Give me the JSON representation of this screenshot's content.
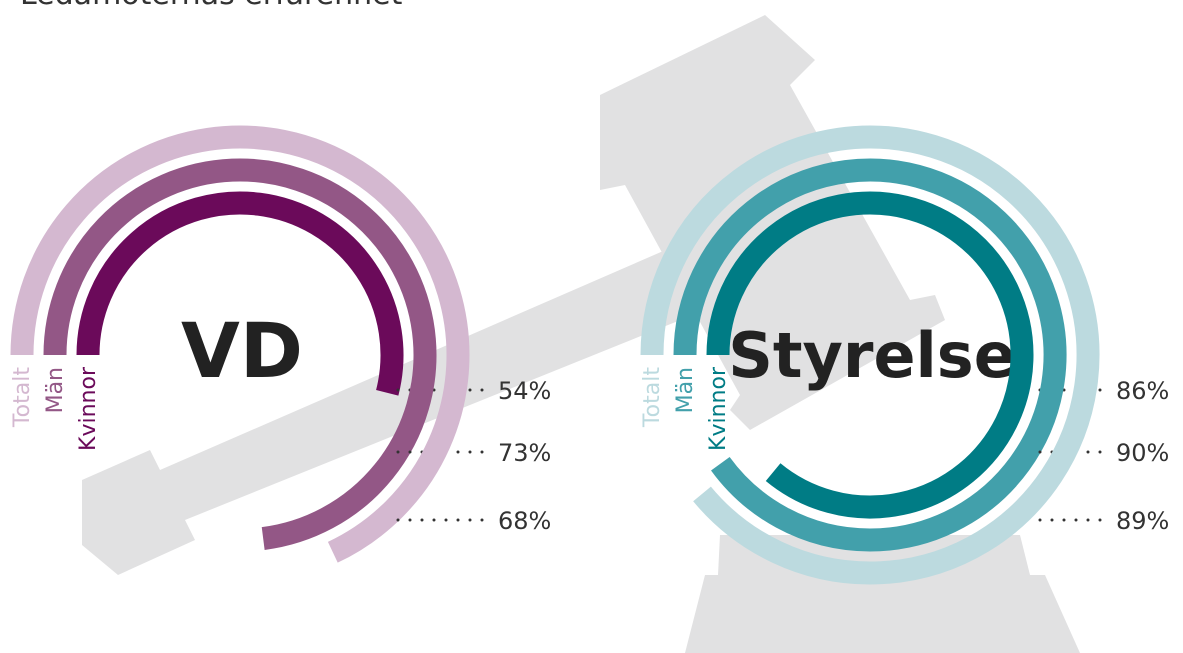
{
  "header": {
    "title": "Ledamöternas erfarenhet"
  },
  "chart_data": [
    {
      "type": "radial_bar",
      "title": "VD",
      "categories": [
        "Kvinnor",
        "Män",
        "Totalt"
      ],
      "values": [
        54,
        73,
        68
      ],
      "value_labels": [
        "54%",
        "73%",
        "68%"
      ],
      "colors": [
        "#6b0a5a",
        "#935786",
        "#d4b8d0"
      ],
      "rlim": [
        0,
        100
      ]
    },
    {
      "type": "radial_bar",
      "title": "Styrelse",
      "categories": [
        "Kvinnor",
        "Män",
        "Totalt"
      ],
      "values": [
        86,
        90,
        89
      ],
      "value_labels": [
        "86%",
        "90%",
        "89%"
      ],
      "colors": [
        "#007c85",
        "#42a0ab",
        "#bcdadf"
      ],
      "rlim": [
        0,
        100
      ]
    }
  ]
}
